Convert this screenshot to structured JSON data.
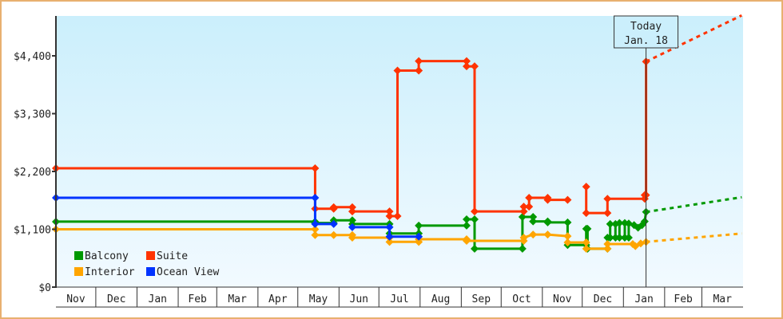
{
  "chart_data": {
    "type": "line",
    "title": "",
    "xlabel": "",
    "ylabel": "",
    "ylim": [
      0,
      5200
    ],
    "yticks": [
      0,
      1100,
      2200,
      3300,
      4400
    ],
    "ytick_labels": [
      "$0",
      "$1,100",
      "$2,200",
      "$3,300",
      "$4,400"
    ],
    "xlim": [
      "2011-11-01",
      "2013-04-01"
    ],
    "month_labels": [
      "Nov",
      "Dec",
      "Jan",
      "Feb",
      "Mar",
      "Apr",
      "May",
      "Jun",
      "Jul",
      "Aug",
      "Sep",
      "Oct",
      "Nov",
      "Dec",
      "Jan",
      "Feb",
      "Mar"
    ],
    "grid": false,
    "legend_placement": "bottom-left",
    "today": {
      "label": "Today",
      "date_label": "Jan. 18",
      "date": "2013-01-18"
    },
    "background_gradient": [
      "#cbeffc",
      "#f2faff"
    ],
    "series": [
      {
        "name": "Balcony",
        "color": "#009900",
        "points": [
          [
            "2011-11-01",
            1245
          ],
          [
            "2012-05-14",
            1245
          ],
          [
            "2012-05-14",
            1220
          ],
          [
            "2012-05-28",
            1220
          ],
          [
            "2012-05-28",
            1270
          ],
          [
            "2012-06-11",
            1270
          ],
          [
            "2012-06-11",
            1200
          ],
          [
            "2012-07-09",
            1200
          ],
          [
            "2012-07-09",
            1020
          ],
          [
            "2012-07-31",
            1020
          ],
          [
            "2012-07-31",
            1170
          ],
          [
            "2012-09-05",
            1170
          ],
          [
            "2012-09-05",
            1290
          ],
          [
            "2012-09-11",
            1290
          ],
          [
            "2012-09-11",
            730
          ],
          [
            "2012-10-17",
            730
          ],
          [
            "2012-10-17",
            1335
          ],
          [
            "2012-10-25",
            1335
          ],
          [
            "2012-10-25",
            1250
          ],
          [
            "2012-11-05",
            1250
          ],
          [
            "2012-11-05",
            1230
          ],
          [
            "2012-11-20",
            1230
          ],
          [
            "2012-11-20",
            800
          ],
          [
            "2012-12-04",
            800
          ],
          [
            "2012-12-04",
            1110
          ],
          [
            "2012-12-05",
            1110
          ],
          [
            "2012-12-05",
            730
          ],
          [
            "2012-12-20",
            730
          ],
          [
            "2012-12-20",
            940
          ],
          [
            "2012-12-22",
            940
          ],
          [
            "2012-12-22",
            1200
          ],
          [
            "2012-12-26",
            1200
          ],
          [
            "2012-12-26",
            940
          ],
          [
            "2012-12-29",
            940
          ],
          [
            "2012-12-29",
            1220
          ],
          [
            "2013-01-02",
            1220
          ],
          [
            "2013-01-02",
            940
          ],
          [
            "2013-01-05",
            940
          ],
          [
            "2013-01-05",
            1210
          ],
          [
            "2013-01-09",
            1180
          ],
          [
            "2013-01-12",
            1130
          ],
          [
            "2013-01-15",
            1180
          ],
          [
            "2013-01-17",
            1250
          ],
          [
            "2013-01-18",
            1430
          ]
        ],
        "projection": [
          [
            "2013-01-18",
            1430
          ],
          [
            "2013-03-31",
            1710
          ]
        ]
      },
      {
        "name": "Suite",
        "color": "#ff3300",
        "points": [
          [
            "2011-11-01",
            2260
          ],
          [
            "2012-05-14",
            2260
          ],
          [
            "2012-05-14",
            1490
          ],
          [
            "2012-05-28",
            1490
          ],
          [
            "2012-05-28",
            1520
          ],
          [
            "2012-06-11",
            1520
          ],
          [
            "2012-06-11",
            1440
          ],
          [
            "2012-07-09",
            1440
          ],
          [
            "2012-07-09",
            1350
          ],
          [
            "2012-07-15",
            1350
          ],
          [
            "2012-07-15",
            4120
          ],
          [
            "2012-07-31",
            4120
          ],
          [
            "2012-07-31",
            4300
          ],
          [
            "2012-09-05",
            4300
          ],
          [
            "2012-09-05",
            4200
          ],
          [
            "2012-09-11",
            4200
          ],
          [
            "2012-09-11",
            1440
          ],
          [
            "2012-10-18",
            1440
          ],
          [
            "2012-10-18",
            1530
          ],
          [
            "2012-10-22",
            1530
          ],
          [
            "2012-10-22",
            1700
          ],
          [
            "2012-11-05",
            1700
          ],
          [
            "2012-11-05",
            1660
          ],
          [
            "2012-11-20",
            1660
          ],
          null,
          [
            "2012-12-04",
            1910
          ],
          [
            "2012-12-04",
            1410
          ],
          [
            "2012-12-20",
            1410
          ],
          [
            "2012-12-20",
            1680
          ],
          [
            "2013-01-17",
            1680
          ],
          [
            "2013-01-17",
            1750
          ],
          [
            "2013-01-18",
            1750
          ],
          [
            "2013-01-18",
            4290
          ]
        ],
        "projection": [
          [
            "2013-01-18",
            4290
          ],
          [
            "2013-03-31",
            5170
          ]
        ]
      },
      {
        "name": "Interior",
        "color": "#ffa500",
        "points": [
          [
            "2011-11-01",
            1100
          ],
          [
            "2012-05-14",
            1100
          ],
          [
            "2012-05-14",
            990
          ],
          [
            "2012-05-28",
            990
          ],
          [
            "2012-06-11",
            990
          ],
          [
            "2012-06-11",
            940
          ],
          [
            "2012-07-09",
            940
          ],
          [
            "2012-07-09",
            860
          ],
          [
            "2012-07-31",
            860
          ],
          [
            "2012-07-31",
            910
          ],
          [
            "2012-09-05",
            910
          ],
          [
            "2012-09-05",
            880
          ],
          [
            "2012-10-18",
            880
          ],
          [
            "2012-10-18",
            940
          ],
          [
            "2012-10-25",
            1000
          ],
          [
            "2012-11-05",
            1000
          ],
          [
            "2012-11-20",
            970
          ],
          [
            "2012-11-20",
            850
          ],
          [
            "2012-12-04",
            850
          ],
          [
            "2012-12-04",
            730
          ],
          [
            "2012-12-20",
            730
          ],
          [
            "2012-12-20",
            820
          ],
          [
            "2013-01-08",
            820
          ],
          [
            "2013-01-10",
            780
          ],
          [
            "2013-01-14",
            830
          ],
          [
            "2013-01-18",
            860
          ]
        ],
        "projection": [
          [
            "2013-01-18",
            860
          ],
          [
            "2013-03-31",
            1020
          ]
        ]
      },
      {
        "name": "Ocean View",
        "color": "#0033ff",
        "points": [
          [
            "2011-11-01",
            1700
          ],
          [
            "2012-05-14",
            1700
          ],
          [
            "2012-05-14",
            1200
          ],
          [
            "2012-05-28",
            1200
          ],
          null,
          [
            "2012-06-11",
            1140
          ],
          [
            "2012-07-09",
            1140
          ],
          [
            "2012-07-09",
            960
          ],
          [
            "2012-07-31",
            960
          ]
        ],
        "projection": []
      }
    ]
  }
}
